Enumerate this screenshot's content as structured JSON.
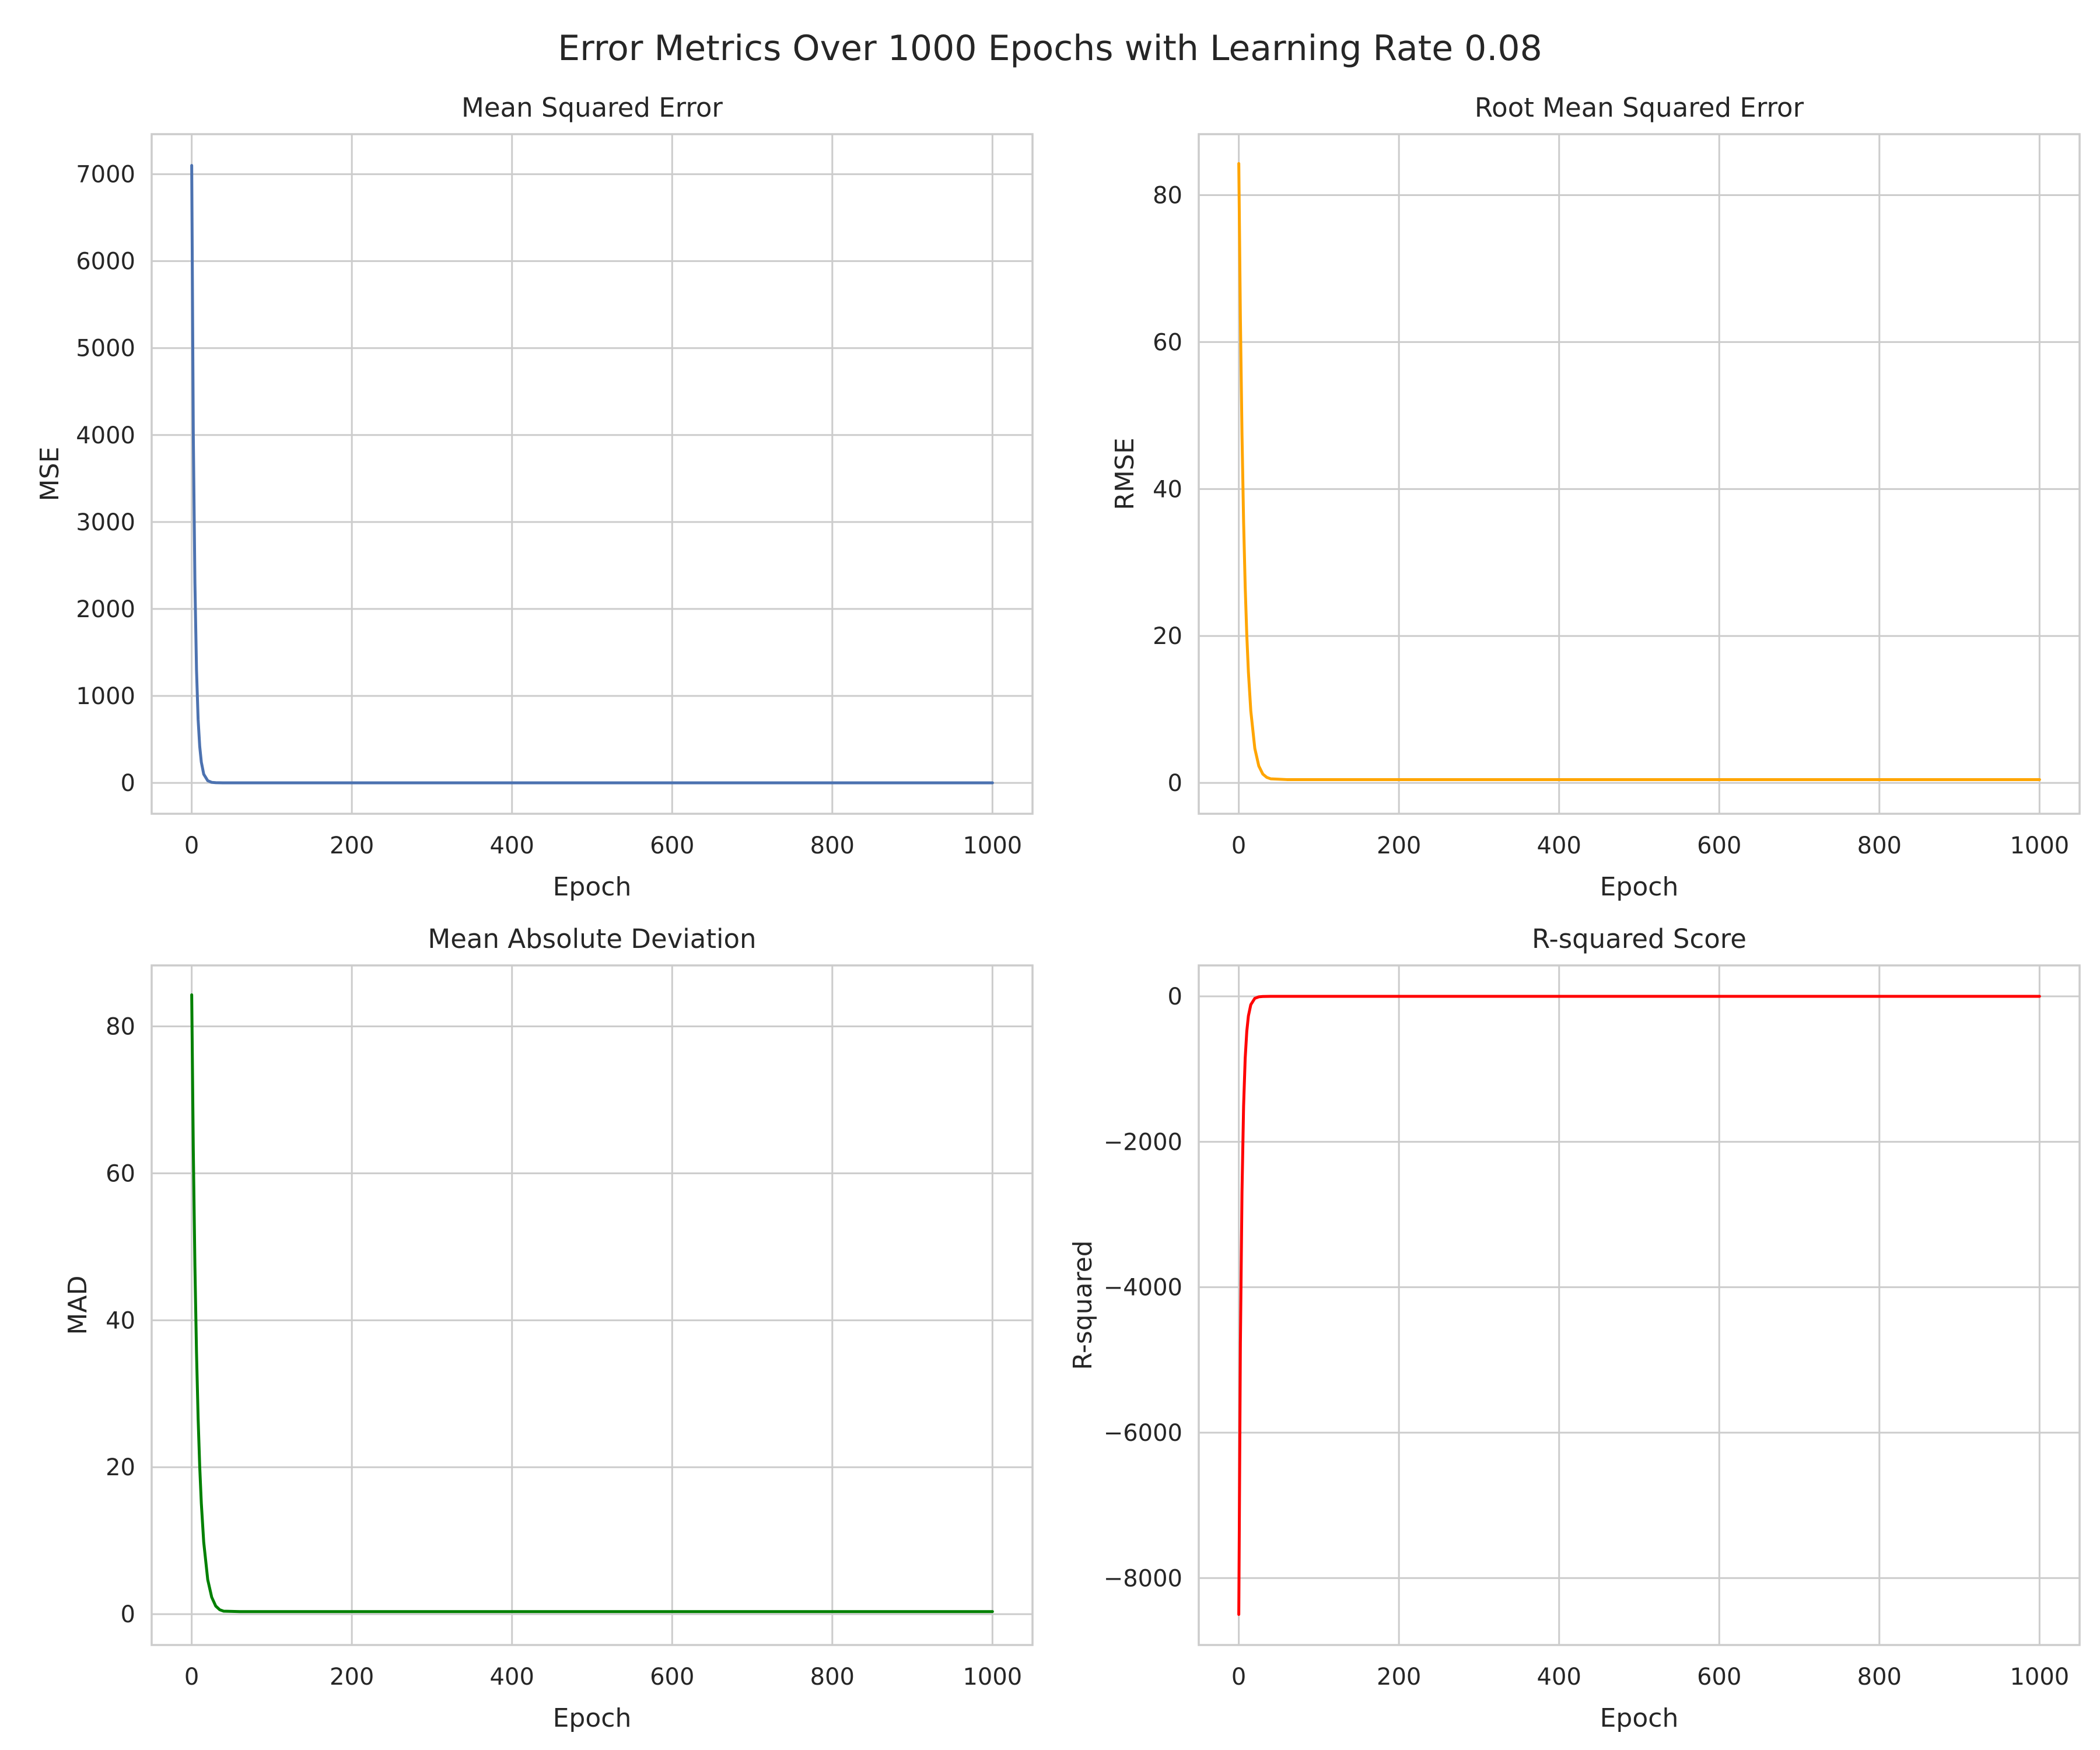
{
  "figure": {
    "title": "Error Metrics Over 1000 Epochs with Learning Rate 0.08"
  },
  "chart_data": [
    {
      "type": "line",
      "title": "Mean Squared Error",
      "xlabel": "Epoch",
      "ylabel": "MSE",
      "xlim": [
        -50,
        1050
      ],
      "ylim": [
        -355,
        7460
      ],
      "xticks": [
        0,
        200,
        400,
        600,
        800,
        1000
      ],
      "yticks": [
        0,
        1000,
        2000,
        3000,
        4000,
        5000,
        6000,
        7000
      ],
      "grid": true,
      "color": "#4c72b0",
      "series": [
        {
          "x": [
            0,
            2,
            4,
            6,
            8,
            10,
            12,
            15,
            20,
            25,
            30,
            40,
            60,
            100,
            200,
            400,
            600,
            800,
            1000
          ],
          "values": [
            7100,
            4000,
            2300,
            1300,
            730,
            420,
            240,
            100,
            25,
            6,
            2,
            0.3,
            0.2,
            0.2,
            0.2,
            0.2,
            0.2,
            0.2,
            0.2
          ]
        }
      ]
    },
    {
      "type": "line",
      "title": "Root Mean Squared Error",
      "xlabel": "Epoch",
      "ylabel": "RMSE",
      "xlim": [
        -50,
        1050
      ],
      "ylim": [
        -4.2,
        88.3
      ],
      "xticks": [
        0,
        200,
        400,
        600,
        800,
        1000
      ],
      "yticks": [
        0,
        20,
        40,
        60,
        80
      ],
      "grid": true,
      "color": "#ffa500",
      "series": [
        {
          "x": [
            0,
            2,
            4,
            6,
            8,
            10,
            12,
            15,
            20,
            25,
            30,
            35,
            40,
            60,
            100,
            200,
            400,
            600,
            800,
            1000
          ],
          "values": [
            84.3,
            63.2,
            47.4,
            35.6,
            26.7,
            20.1,
            15.1,
            9.8,
            4.7,
            2.3,
            1.2,
            0.75,
            0.55,
            0.45,
            0.45,
            0.45,
            0.45,
            0.45,
            0.45,
            0.45
          ]
        }
      ]
    },
    {
      "type": "line",
      "title": "Mean Absolute Deviation",
      "xlabel": "Epoch",
      "ylabel": "MAD",
      "xlim": [
        -50,
        1050
      ],
      "ylim": [
        -4.2,
        88.3
      ],
      "xticks": [
        0,
        200,
        400,
        600,
        800,
        1000
      ],
      "yticks": [
        0,
        20,
        40,
        60,
        80
      ],
      "grid": true,
      "color": "#008000",
      "series": [
        {
          "x": [
            0,
            2,
            4,
            6,
            8,
            10,
            12,
            15,
            20,
            25,
            30,
            35,
            40,
            60,
            100,
            200,
            400,
            600,
            800,
            1000
          ],
          "values": [
            84.3,
            63.2,
            47.4,
            35.6,
            26.7,
            20.1,
            15.1,
            9.8,
            4.7,
            2.3,
            1.1,
            0.6,
            0.4,
            0.35,
            0.35,
            0.35,
            0.35,
            0.35,
            0.35,
            0.35
          ]
        }
      ]
    },
    {
      "type": "line",
      "title": "R-squared Score",
      "xlabel": "Epoch",
      "ylabel": "R-squared",
      "xlim": [
        -50,
        1050
      ],
      "ylim": [
        -8920,
        425
      ],
      "xticks": [
        0,
        200,
        400,
        600,
        800,
        1000
      ],
      "yticks": [
        0,
        -2000,
        -4000,
        -6000,
        -8000
      ],
      "grid": true,
      "color": "#ff0000",
      "series": [
        {
          "x": [
            0,
            2,
            4,
            6,
            8,
            10,
            12,
            15,
            20,
            25,
            30,
            40,
            60,
            100,
            200,
            400,
            600,
            800,
            1000
          ],
          "values": [
            -8500,
            -4780,
            -2690,
            -1510,
            -850,
            -480,
            -270,
            -115,
            -28,
            -7,
            -2,
            -0.3,
            0,
            0,
            0,
            0,
            0,
            0,
            0
          ]
        }
      ]
    }
  ]
}
